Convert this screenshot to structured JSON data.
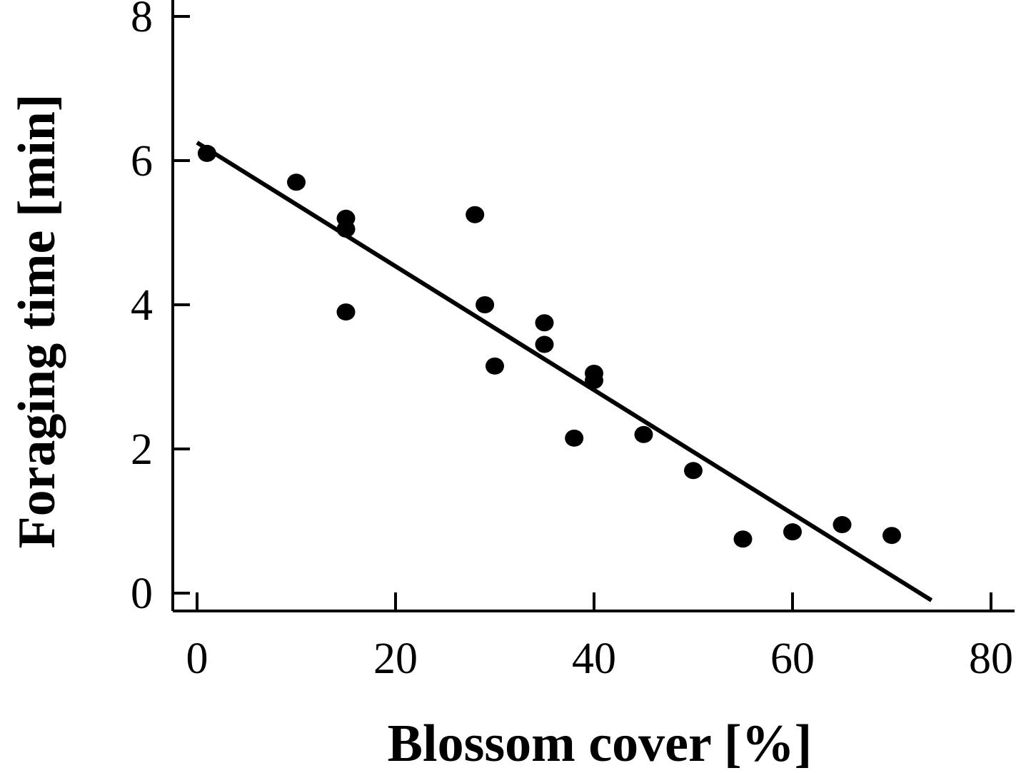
{
  "chart_data": {
    "type": "scatter",
    "title": "",
    "xlabel": "Blossom cover [%]",
    "ylabel": "Foraging time [min]",
    "xlim": [
      -2,
      82
    ],
    "ylim": [
      -0.25,
      8.25
    ],
    "xticks": [
      0,
      20,
      40,
      60,
      80
    ],
    "yticks": [
      0,
      2,
      4,
      6,
      8
    ],
    "xtick_labels": [
      "0",
      "20",
      "40",
      "60",
      "80"
    ],
    "ytick_labels": [
      "0",
      "2",
      "4",
      "6",
      "8"
    ],
    "grid": false,
    "legend": "none",
    "series": [
      {
        "type": "scatter",
        "x": [
          1,
          10,
          15,
          15,
          15,
          28,
          29,
          30,
          35,
          35,
          38,
          40,
          40,
          45,
          50,
          55,
          60,
          65,
          70
        ],
        "y": [
          6.1,
          5.7,
          5.2,
          5.05,
          3.9,
          5.25,
          4.0,
          3.15,
          3.75,
          3.45,
          2.15,
          3.05,
          2.95,
          2.2,
          1.7,
          0.75,
          0.85,
          0.95,
          0.8
        ]
      },
      {
        "type": "line",
        "x": [
          0,
          74
        ],
        "y": [
          6.25,
          -0.1
        ]
      }
    ],
    "colors": {
      "marker": "#000000",
      "line": "#000000",
      "axis": "#000000"
    }
  }
}
